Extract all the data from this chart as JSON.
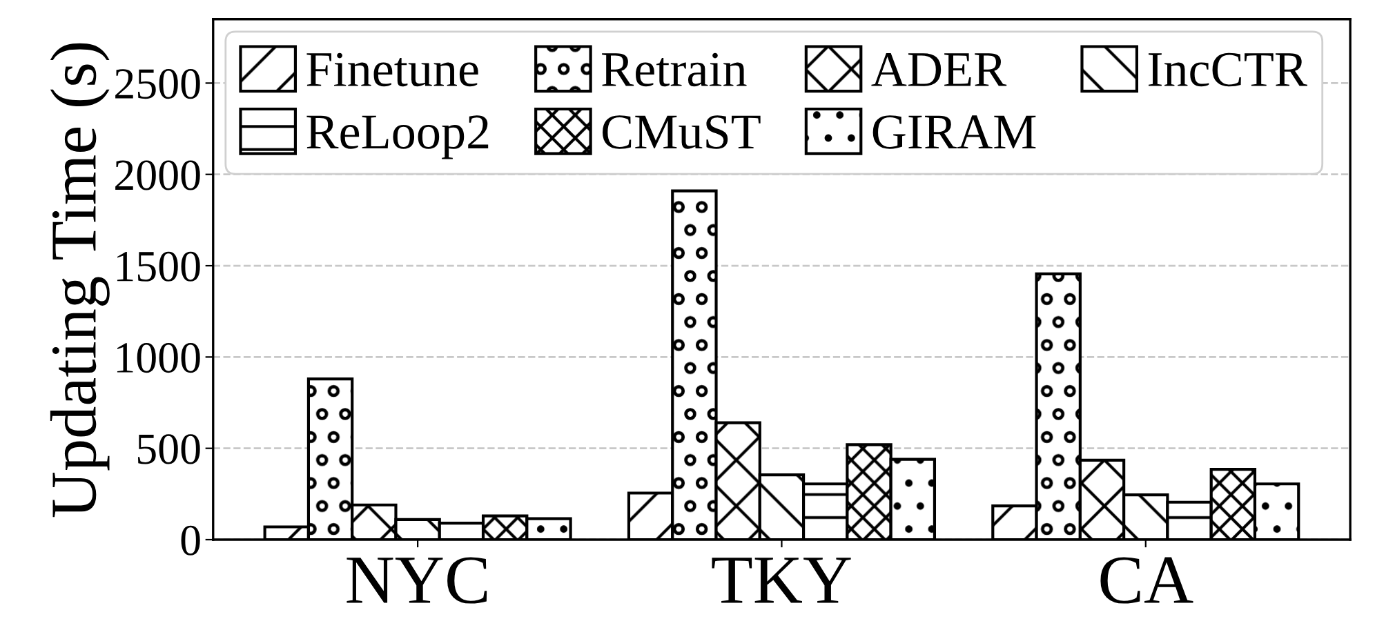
{
  "chart_data": {
    "type": "bar",
    "ylabel": "Updating Time (s)",
    "categories": [
      "NYC",
      "TKY",
      "CA"
    ],
    "series": [
      {
        "name": "Finetune",
        "color": "#000000",
        "values": [
          70,
          255,
          185
        ]
      },
      {
        "name": "Retrain",
        "color": "#000000",
        "values": [
          880,
          1910,
          1455
        ]
      },
      {
        "name": "ADER",
        "color": "#000000",
        "values": [
          190,
          640,
          435
        ]
      },
      {
        "name": "IncCTR",
        "color": "#000000",
        "values": [
          110,
          355,
          245
        ]
      },
      {
        "name": "ReLoop2",
        "color": "#000000",
        "values": [
          90,
          305,
          205
        ]
      },
      {
        "name": "CMuST",
        "color": "#000000",
        "values": [
          130,
          520,
          385
        ]
      },
      {
        "name": "GIRAM",
        "color": "#000000",
        "values": [
          115,
          440,
          305
        ]
      }
    ],
    "ylim": [
      0,
      2850
    ],
    "yticks": [
      0,
      500,
      1000,
      1500,
      2000,
      2500
    ],
    "grid": "y",
    "legend": "top left"
  }
}
